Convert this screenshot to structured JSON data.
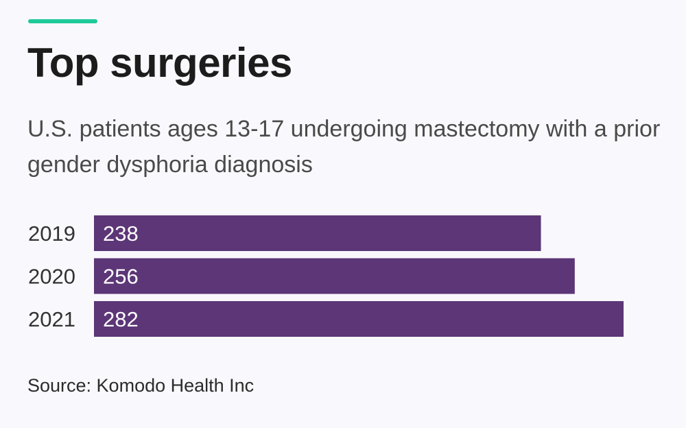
{
  "header": {
    "accent_color": "#1ec99a",
    "title": "Top surgeries",
    "subtitle": "U.S. patients ages 13-17 undergoing mastectomy with a prior gender dysphoria diagnosis"
  },
  "chart_data": {
    "type": "bar",
    "orientation": "horizontal",
    "categories": [
      "2019",
      "2020",
      "2021"
    ],
    "values": [
      238,
      256,
      282
    ],
    "value_labels": [
      "238",
      "256",
      "282"
    ],
    "bar_color": "#5c3677",
    "label_color": "#ffffff",
    "grid": false,
    "legend": "none"
  },
  "footer": {
    "source": "Source: Komodo Health Inc"
  }
}
